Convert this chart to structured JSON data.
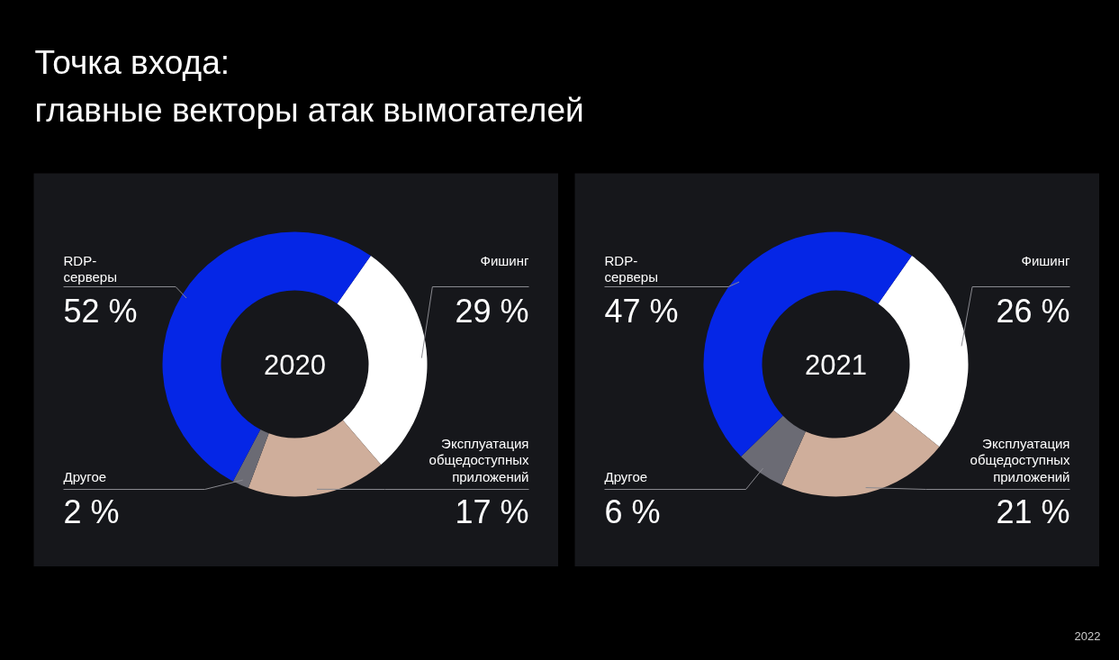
{
  "chart_data": [
    {
      "type": "other",
      "title": "Точка входа:\nглавные векторы атак вымогателей",
      "annotations": [
        "2022"
      ]
    },
    {
      "type": "donut",
      "title": "2020",
      "categories": [
        "Фишинг",
        "Эксплуатация\nобщедоступных\nприложений",
        "Другое",
        "RDP-\nсерверы"
      ],
      "values": [
        29,
        17,
        2,
        52
      ],
      "colors": [
        "#ffffff",
        "#cfae9b",
        "#6b6b74",
        "#0526e6"
      ],
      "value_labels": [
        "29 %",
        "17 %",
        "2 %",
        "52 %"
      ]
    },
    {
      "type": "donut",
      "title": "2021",
      "categories": [
        "Фишинг",
        "Эксплуатация\nобщедоступных\nприложений",
        "Другое",
        "RDP-\nсерверы"
      ],
      "values": [
        26,
        21,
        6,
        47
      ],
      "colors": [
        "#ffffff",
        "#cfae9b",
        "#6b6b74",
        "#0526e6"
      ],
      "value_labels": [
        "26 %",
        "21 %",
        "6 %",
        "47 %"
      ]
    }
  ]
}
